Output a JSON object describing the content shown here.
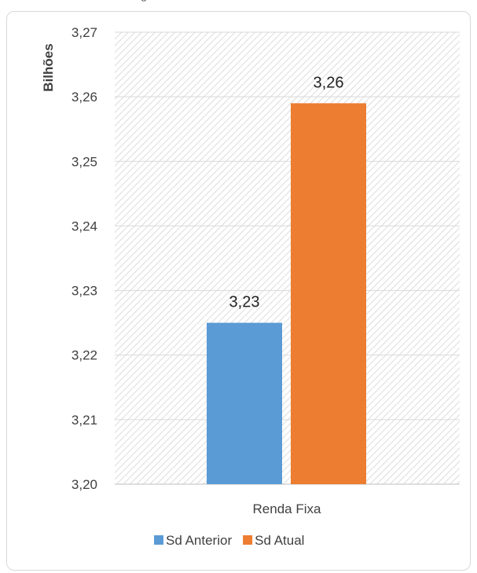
{
  "header_fragment": "g",
  "chart_data": {
    "type": "bar",
    "title": "",
    "xlabel": "",
    "ylabel": "Bilhões",
    "categories": [
      "Renda Fixa"
    ],
    "series": [
      {
        "name": "Sd Anterior",
        "values": [
          3.225
        ],
        "label": "3,23",
        "color": "#5b9bd5"
      },
      {
        "name": "Sd Atual",
        "values": [
          3.259
        ],
        "label": "3,26",
        "color": "#ed7d31"
      }
    ],
    "ylim": [
      3.2,
      3.27
    ],
    "yticks": [
      "3,20",
      "3,21",
      "3,22",
      "3,23",
      "3,24",
      "3,25",
      "3,26",
      "3,27"
    ],
    "grid": true,
    "plot_background": "diagonal-hatch",
    "legend": "bottom"
  }
}
